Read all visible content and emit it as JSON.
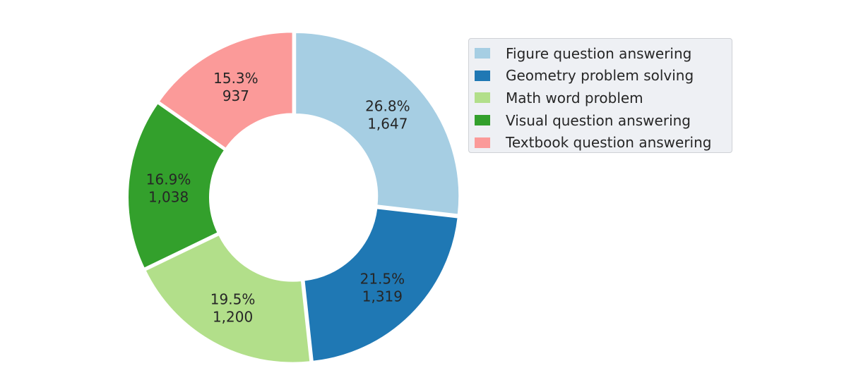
{
  "chart_data": {
    "type": "pie",
    "donut": true,
    "categories": [
      "Figure question answering",
      "Geometry problem solving",
      "Math word problem",
      "Visual question answering",
      "Textbook question answering"
    ],
    "values": [
      1647,
      1319,
      1200,
      1038,
      937
    ],
    "percent_labels": [
      "26.8%",
      "21.5%",
      "19.5%",
      "16.9%",
      "15.3%"
    ],
    "value_labels": [
      "1,647",
      "1,319",
      "1,200",
      "1,038",
      "937"
    ],
    "colors": [
      "#a6cee3",
      "#1f78b4",
      "#b2df8a",
      "#33a02c",
      "#fb9a99"
    ],
    "start_angle_deg": 90,
    "direction": "clockwise",
    "legend_position": "right"
  }
}
